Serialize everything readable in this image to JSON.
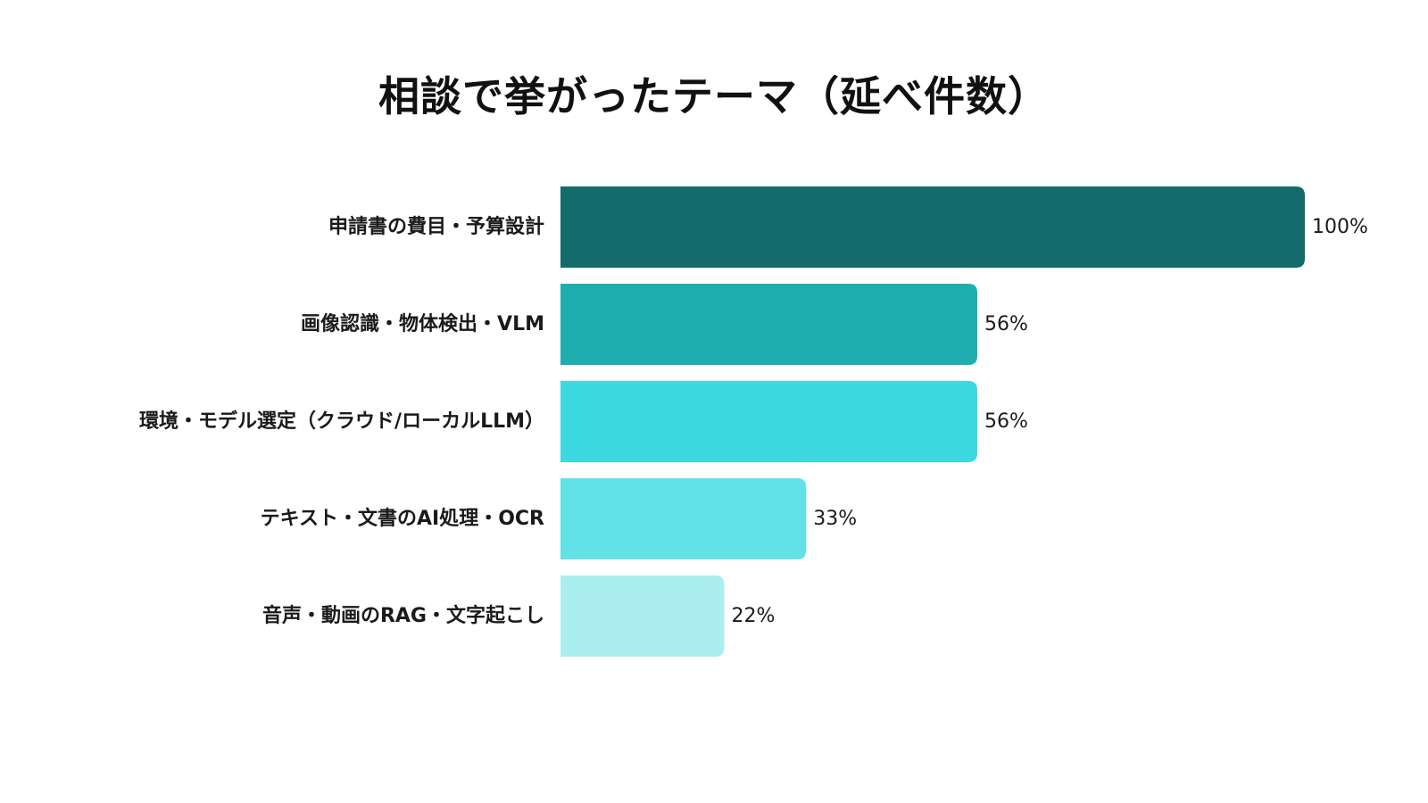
{
  "chart_data": {
    "type": "bar",
    "orientation": "horizontal",
    "title": "相談で挙がったテーマ（延べ件数）",
    "categories": [
      "申請書の費目・予算設計",
      "画像認識・物体検出・VLM",
      "環境・モデル選定（クラウド/ローカルLLM）",
      "テキスト・文書のAI処理・OCR",
      "音声・動画のRAG・文字起こし"
    ],
    "values": [
      100,
      56,
      56,
      33,
      22
    ],
    "value_labels": [
      "100%",
      "56%",
      "56%",
      "33%",
      "22%"
    ],
    "value_unit": "%",
    "xlim": [
      0,
      100
    ],
    "grid": false,
    "legend": "none",
    "colors": [
      "#146b6b",
      "#1faeb0",
      "#3dd9e0",
      "#62e2e6",
      "#aaeef0"
    ]
  }
}
